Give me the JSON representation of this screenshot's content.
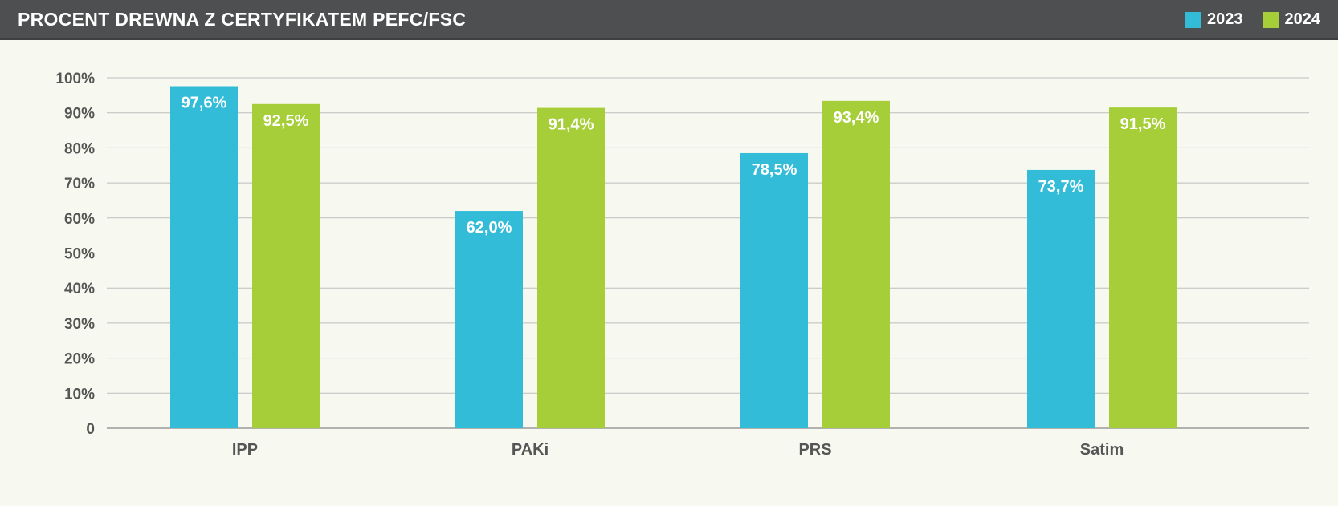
{
  "header": {
    "title": "PROCENT DREWNA Z CERTYFIKATEM PEFC/FSC"
  },
  "legend": [
    {
      "label": "2023",
      "color": "#33bcd8"
    },
    {
      "label": "2024",
      "color": "#a6ce39"
    }
  ],
  "chart_data": {
    "type": "bar",
    "title": "PROCENT DREWNA Z CERTYFIKATEM PEFC/FSC",
    "categories": [
      "IPP",
      "PAKi",
      "PRS",
      "Satim"
    ],
    "series": [
      {
        "name": "2023",
        "color": "#33bcd8",
        "values": [
          97.6,
          62.0,
          78.5,
          73.7
        ],
        "labels": [
          "97,6%",
          "62,0%",
          "78,5%",
          "73,7%"
        ]
      },
      {
        "name": "2024",
        "color": "#a6ce39",
        "values": [
          92.5,
          91.4,
          93.4,
          91.5
        ],
        "labels": [
          "92,5%",
          "91,4%",
          "93,4%",
          "91,5%"
        ]
      }
    ],
    "ylim": [
      0,
      100
    ],
    "yticks": [
      0,
      10,
      20,
      30,
      40,
      50,
      60,
      70,
      80,
      90,
      100
    ],
    "ytick_labels": [
      "0",
      "10%",
      "20%",
      "30%",
      "40%",
      "50%",
      "60%",
      "70%",
      "80%",
      "90%",
      "100%"
    ],
    "xlabel": "",
    "ylabel": "",
    "grid": true,
    "legend_position": "top-right"
  }
}
